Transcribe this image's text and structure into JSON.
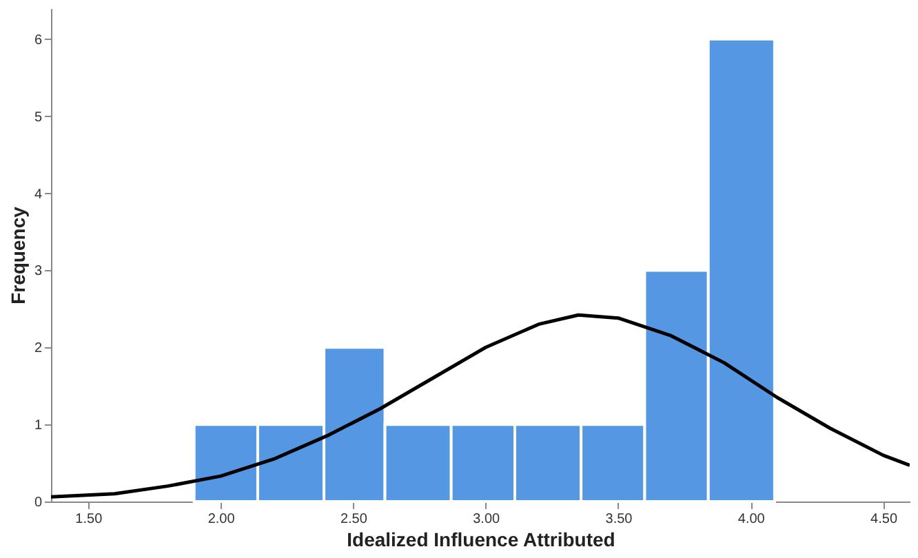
{
  "chart_data": {
    "type": "histogram",
    "xlabel": "Idealized Influence Attributed",
    "ylabel": "Frequency",
    "xlim": [
      1.36,
      4.6
    ],
    "ylim": [
      0,
      6.4
    ],
    "xticks": [
      {
        "value": 1.5,
        "label": "1.50"
      },
      {
        "value": 2.0,
        "label": "2.00"
      },
      {
        "value": 2.5,
        "label": "2.50"
      },
      {
        "value": 3.0,
        "label": "3.00"
      },
      {
        "value": 3.5,
        "label": "3.50"
      },
      {
        "value": 4.0,
        "label": "4.00"
      },
      {
        "value": 4.5,
        "label": "4.50"
      }
    ],
    "yticks": [
      0,
      1,
      2,
      3,
      4,
      5,
      6
    ],
    "grid": false,
    "series": [
      {
        "color": "#5597e3",
        "bins": [
          1.9,
          2.14,
          2.39,
          2.62,
          2.87,
          3.11,
          3.36,
          3.6,
          3.84,
          4.09
        ],
        "values": [
          1,
          1,
          2,
          1,
          1,
          1,
          1,
          3,
          6
        ]
      },
      {
        "type": "line",
        "color": "#000000",
        "line_style": "solid",
        "x": [
          1.36,
          1.6,
          1.8,
          2.0,
          2.2,
          2.4,
          2.6,
          2.8,
          3.0,
          3.2,
          3.35,
          3.5,
          3.7,
          3.9,
          4.1,
          4.3,
          4.5,
          4.6
        ],
        "values": [
          0.06,
          0.1,
          0.2,
          0.33,
          0.55,
          0.85,
          1.2,
          1.6,
          2.0,
          2.3,
          2.42,
          2.38,
          2.15,
          1.8,
          1.35,
          0.95,
          0.6,
          0.47
        ]
      }
    ]
  }
}
